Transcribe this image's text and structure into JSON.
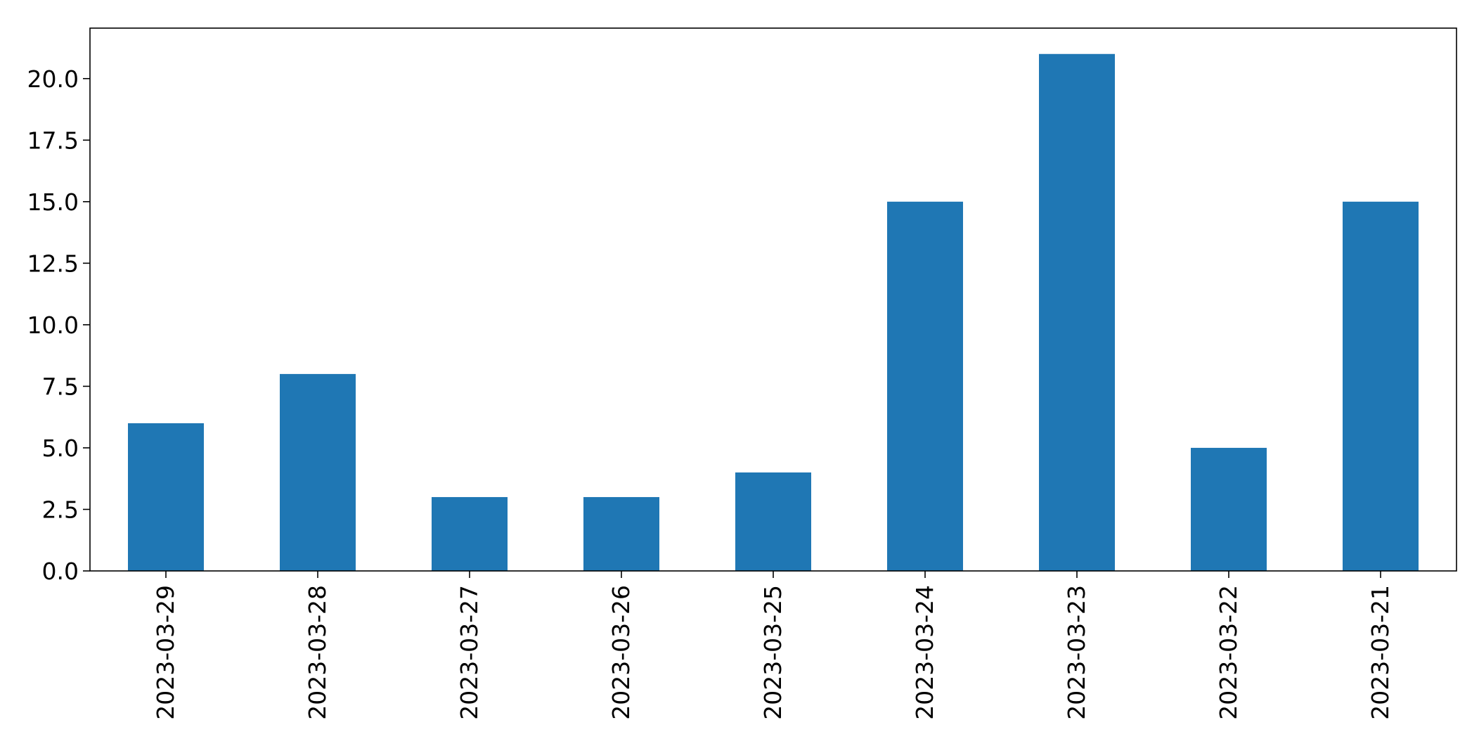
{
  "chart_data": {
    "type": "bar",
    "categories": [
      "2023-03-29",
      "2023-03-28",
      "2023-03-27",
      "2023-03-26",
      "2023-03-25",
      "2023-03-24",
      "2023-03-23",
      "2023-03-22",
      "2023-03-21"
    ],
    "values": [
      6,
      8,
      3,
      3,
      4,
      15,
      21,
      5,
      15
    ],
    "title": "",
    "xlabel": "",
    "ylabel": "",
    "ylim": [
      0,
      22.05
    ],
    "yticks": [
      "0.0",
      "2.5",
      "5.0",
      "7.5",
      "10.0",
      "12.5",
      "15.0",
      "17.5",
      "20.0"
    ],
    "bar_color": "#1f77b4",
    "grid": false,
    "legend": "none",
    "x_tick_rotation": "vertical"
  }
}
